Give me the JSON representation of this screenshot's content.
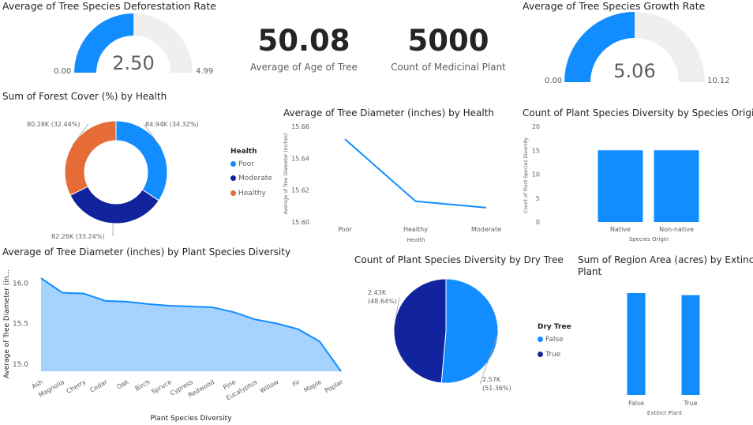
{
  "colors": {
    "blue": "#118DFF",
    "navy": "#12239E",
    "orange": "#E66C37",
    "gray": "#F0EFEE",
    "areaFill": "#A6D2FF"
  },
  "gauge1": {
    "title": "Average of Tree Species Deforestation Rate",
    "value": "2.50",
    "min": "0.00",
    "max": "4.99",
    "fraction": 0.501
  },
  "gauge2": {
    "title": "Average of Tree Species Growth Rate",
    "value": "5.06",
    "min": "0.00",
    "max": "10.12",
    "fraction": 0.5
  },
  "kpi1": {
    "value": "50.08",
    "label": "Average of Age of Tree"
  },
  "kpi2": {
    "value": "5000",
    "label": "Count of Medicinal Plant"
  },
  "donut": {
    "title": "Sum of Forest Cover (%) by Health"
  },
  "donutLegend": {
    "title": "Health",
    "items": [
      "Poor",
      "Moderate",
      "Healthy"
    ]
  },
  "line": {
    "title": "Average of Tree Diameter (inches) by Health"
  },
  "bar1": {
    "title": "Count of Plant Species Diversity by Species Origin"
  },
  "area": {
    "title": "Average of Tree Diameter (inches) by Plant Species Diversity"
  },
  "pie": {
    "title": "Count of Plant Species Diversity by Dry Tree"
  },
  "pieLegend": {
    "title": "Dry Tree",
    "items": [
      "False",
      "True"
    ]
  },
  "bar2": {
    "title": "Sum of Region Area (acres) by Extinct Plant"
  },
  "chart_data": [
    {
      "type": "pie",
      "name": "forest-cover-donut",
      "slices": [
        {
          "label": "Poor",
          "value": 84.94,
          "text": "84.94K (34.32%)",
          "color": "#118DFF"
        },
        {
          "label": "Moderate",
          "value": 82.26,
          "text": "82.26K (33.24%)",
          "color": "#12239E"
        },
        {
          "label": "Healthy",
          "value": 80.28,
          "text": "80.28K (32.44%)",
          "color": "#E66C37"
        }
      ]
    },
    {
      "type": "line",
      "name": "diameter-by-health",
      "categories": [
        "Poor",
        "Healthy",
        "Moderate"
      ],
      "values": [
        15.652,
        15.613,
        15.609
      ],
      "xlabel": "Health",
      "ylabel": "Average of Tree Diameter (inches)",
      "ylim": [
        15.6,
        15.66
      ],
      "yticks": [
        "15.66",
        "15.64",
        "15.62",
        "15.60"
      ]
    },
    {
      "type": "bar",
      "name": "species-origin",
      "categories": [
        "Native",
        "Non-native"
      ],
      "values": [
        15,
        15
      ],
      "xlabel": "Species Origin",
      "ylabel": "Count of Plant Species Diversity",
      "ylim": [
        0,
        20
      ],
      "yticks": [
        "20",
        "15",
        "10",
        "5",
        "0"
      ]
    },
    {
      "type": "area",
      "name": "diameter-by-species",
      "categories": [
        "Ash",
        "Magnolia",
        "Cherry",
        "Cedar",
        "Oak",
        "Birch",
        "Spruce",
        "Cypress",
        "Redwood",
        "Pine",
        "Eucalyptus",
        "Willow",
        "Fir",
        "Maple",
        "Poplar"
      ],
      "values": [
        16.05,
        15.87,
        15.86,
        15.77,
        15.76,
        15.73,
        15.71,
        15.7,
        15.69,
        15.63,
        15.54,
        15.49,
        15.42,
        15.27,
        14.9
      ],
      "xlabel": "Plant Species Diversity",
      "ylabel": "Average of Tree Diameter (in...",
      "ylim": [
        14.9,
        16.1
      ],
      "ytick_values": [
        15.0,
        15.5,
        16.0
      ],
      "yticks": [
        "15.0",
        "15.5",
        "16.0"
      ]
    },
    {
      "type": "pie",
      "name": "dry-tree-pie",
      "slices": [
        {
          "label": "False",
          "value": 2.57,
          "text": "2.57K (51.36%)",
          "color": "#118DFF"
        },
        {
          "label": "True",
          "value": 2.43,
          "text": "2.43K (48.64%)",
          "color": "#12239E"
        }
      ]
    },
    {
      "type": "bar",
      "name": "region-area-extinct",
      "categories": [
        "False",
        "True"
      ],
      "values": [
        1.0,
        0.98
      ],
      "xlabel": "Extinct Plant"
    }
  ]
}
